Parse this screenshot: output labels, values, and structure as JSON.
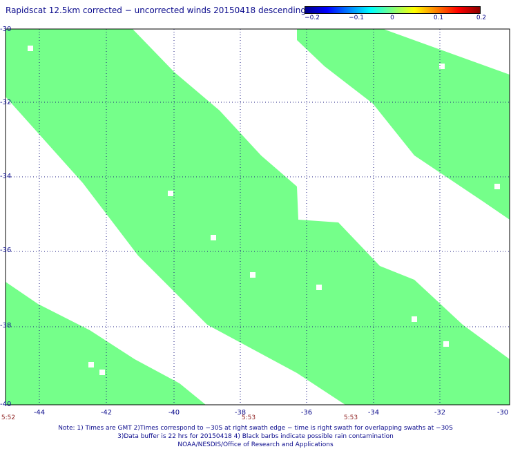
{
  "title": "Rapidscat 12.5km corrected − uncorrected winds 20150418 descending",
  "colorbar": {
    "colors": [
      "#00008b",
      "#0000ff",
      "#0080ff",
      "#00ffff",
      "#80ff80",
      "#ffff00",
      "#ff8000",
      "#ff0000",
      "#8b0000"
    ],
    "labels": [
      "−0.2",
      "−0.1",
      "0",
      "0.1",
      "0.2"
    ],
    "range": [
      -0.2,
      0.2
    ]
  },
  "map": {
    "lon_range": [
      -45,
      -30
    ],
    "lat_range": [
      -40,
      -30
    ],
    "lat_labels": [
      "-30",
      "-32",
      "-34",
      "-36",
      "-38",
      "-40"
    ],
    "lon_labels": [
      "-44",
      "-42",
      "-40",
      "-38",
      "-36",
      "-34",
      "-32",
      "-30"
    ],
    "swath_color": "#75ff8a",
    "grid_color": "#1a1a80"
  },
  "times": [
    "5:52",
    "5:53",
    "5:53"
  ],
  "notes": {
    "line1": "Note: 1) Times are GMT 2)Times correspond to −30S at right swath edge − time is right swath for overlapping swaths at −30S",
    "line2": "3)Data buffer is 22 hrs for 20150418 4) Black barbs indicate possible rain contamination",
    "line3": "NOAA/NESDIS/Office of Research and Applications"
  }
}
